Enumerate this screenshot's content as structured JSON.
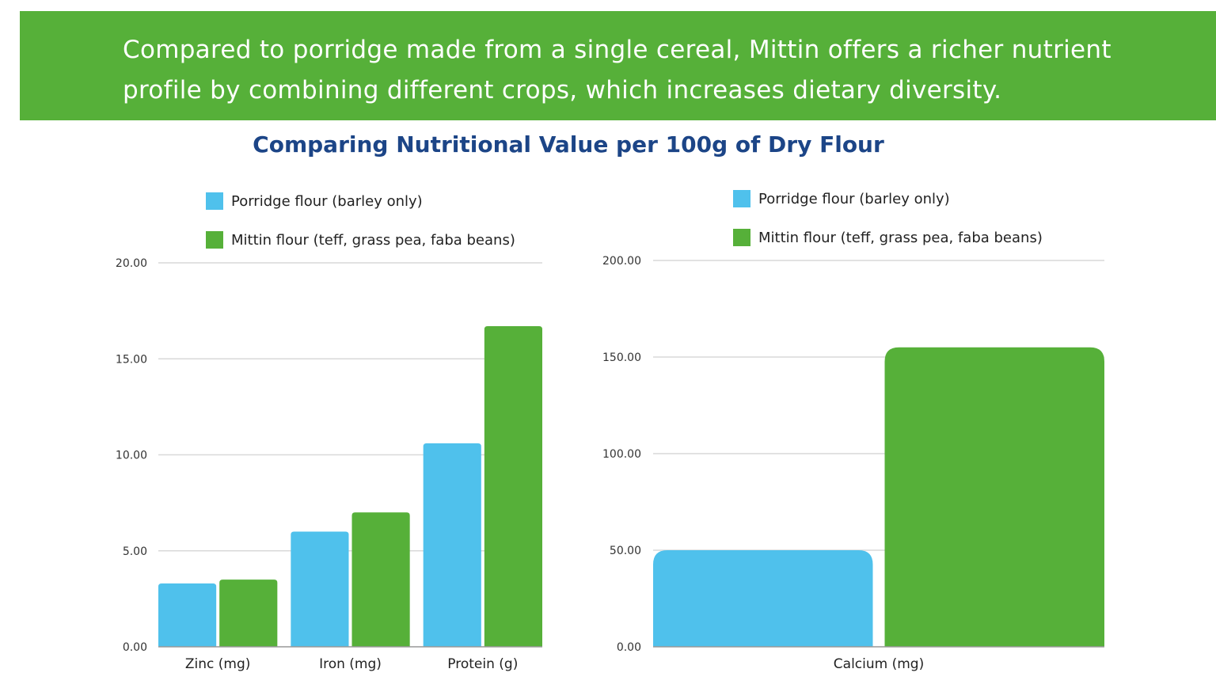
{
  "banner": {
    "text": "Compared to porridge made from a single cereal, Mittin offers a richer nutrient profile by combining different crops, which increases dietary diversity."
  },
  "title": "Comparing Nutritional Value per 100g of Dry Flour",
  "colors": {
    "barley": "#4fc1ec",
    "mittin": "#56b039",
    "banner": "#56b039",
    "title": "#1c4587"
  },
  "chart_data": [
    {
      "type": "bar",
      "categories": [
        "Zinc (mg)",
        "Iron (mg)",
        "Protein (g)"
      ],
      "series": [
        {
          "name": "Porridge flour (barley only)",
          "values": [
            3.3,
            6.0,
            10.6
          ]
        },
        {
          "name": "Mittin flour (teff, grass pea, faba beans)",
          "values": [
            3.5,
            7.0,
            16.7
          ]
        }
      ],
      "ylim": [
        0,
        20
      ],
      "yticks": [
        "0.00",
        "5.00",
        "10.00",
        "15.00",
        "20.00"
      ],
      "grid": true,
      "legend": "top"
    },
    {
      "type": "bar",
      "categories": [
        "Calcium (mg)"
      ],
      "series": [
        {
          "name": "Porridge flour (barley only)",
          "values": [
            50
          ]
        },
        {
          "name": "Mittin flour (teff, grass pea, faba beans)",
          "values": [
            155
          ]
        }
      ],
      "ylim": [
        0,
        200
      ],
      "yticks": [
        "0.00",
        "50.00",
        "100.00",
        "150.00",
        "200.00"
      ],
      "grid": true,
      "legend": "top"
    }
  ]
}
